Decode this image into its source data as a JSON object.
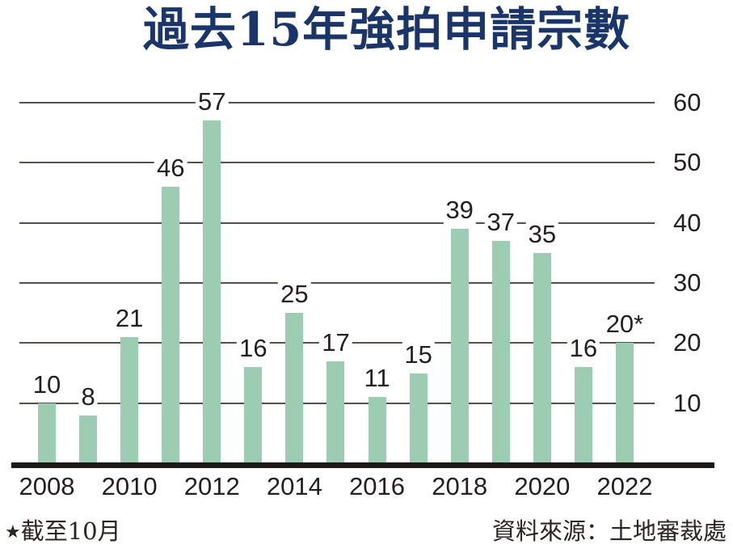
{
  "title": "過去15年強拍申請宗數",
  "footer": {
    "footnote_star": "★",
    "footnote_text": "截至10月",
    "source": "資料來源：土地審裁處"
  },
  "colors": {
    "title": "#1a3569",
    "bar": "#9ccdb3",
    "gridline": "#55504a",
    "axis": "#1d1916",
    "text": "#231f20"
  },
  "chart_data": {
    "type": "bar",
    "title": "過去15年強拍申請宗數",
    "categories": [
      "2008",
      "2009",
      "2010",
      "2011",
      "2012",
      "2013",
      "2014",
      "2015",
      "2016",
      "2017",
      "2018",
      "2019",
      "2020",
      "2021",
      "2022"
    ],
    "values": [
      10,
      8,
      21,
      46,
      57,
      16,
      25,
      17,
      11,
      15,
      39,
      37,
      35,
      16,
      20
    ],
    "bar_labels": [
      "10",
      "8",
      "21",
      "46",
      "57",
      "16",
      "25",
      "17",
      "11",
      "15",
      "39",
      "37",
      "35",
      "16",
      "20*"
    ],
    "x_tick_labels": [
      "2008",
      "2010",
      "2012",
      "2014",
      "2016",
      "2018",
      "2020",
      "2022"
    ],
    "y_ticks": [
      10,
      20,
      30,
      40,
      50,
      60
    ],
    "ylim": [
      0,
      62
    ],
    "xlabel": "",
    "ylabel": "",
    "legend": "none",
    "grid": "horizontal",
    "y_axis_side": "right",
    "footnote": "★截至10月",
    "source": "資料來源：土地審裁處"
  }
}
